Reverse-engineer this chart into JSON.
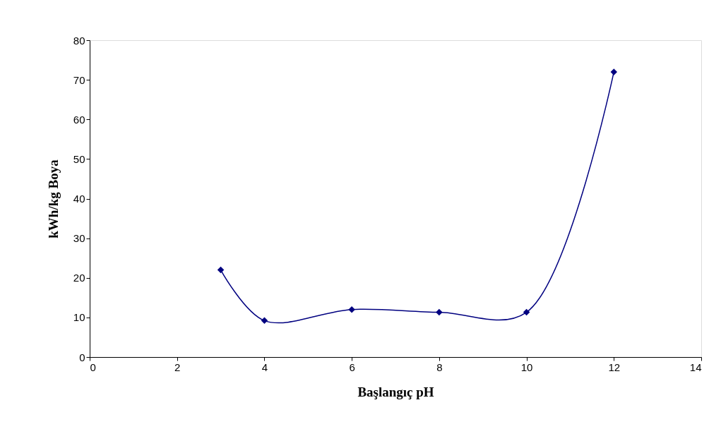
{
  "chart_data": {
    "type": "line",
    "xlabel": "Başlangıç pH",
    "ylabel": "kWh/kg Boya",
    "x": [
      3,
      4,
      6,
      8,
      10,
      12
    ],
    "series": [
      {
        "color": "#000080",
        "values": [
          22,
          9.2,
          12,
          11.3,
          11.3,
          72
        ]
      }
    ],
    "xlim": [
      0,
      14
    ],
    "xticks": [
      0,
      2,
      4,
      6,
      8,
      10,
      12,
      14
    ],
    "ylim": [
      0,
      80
    ],
    "yticks": [
      0,
      10,
      20,
      30,
      40,
      50,
      60,
      70,
      80
    ],
    "grid": false,
    "marker": "diamond",
    "line_style": "solid"
  }
}
